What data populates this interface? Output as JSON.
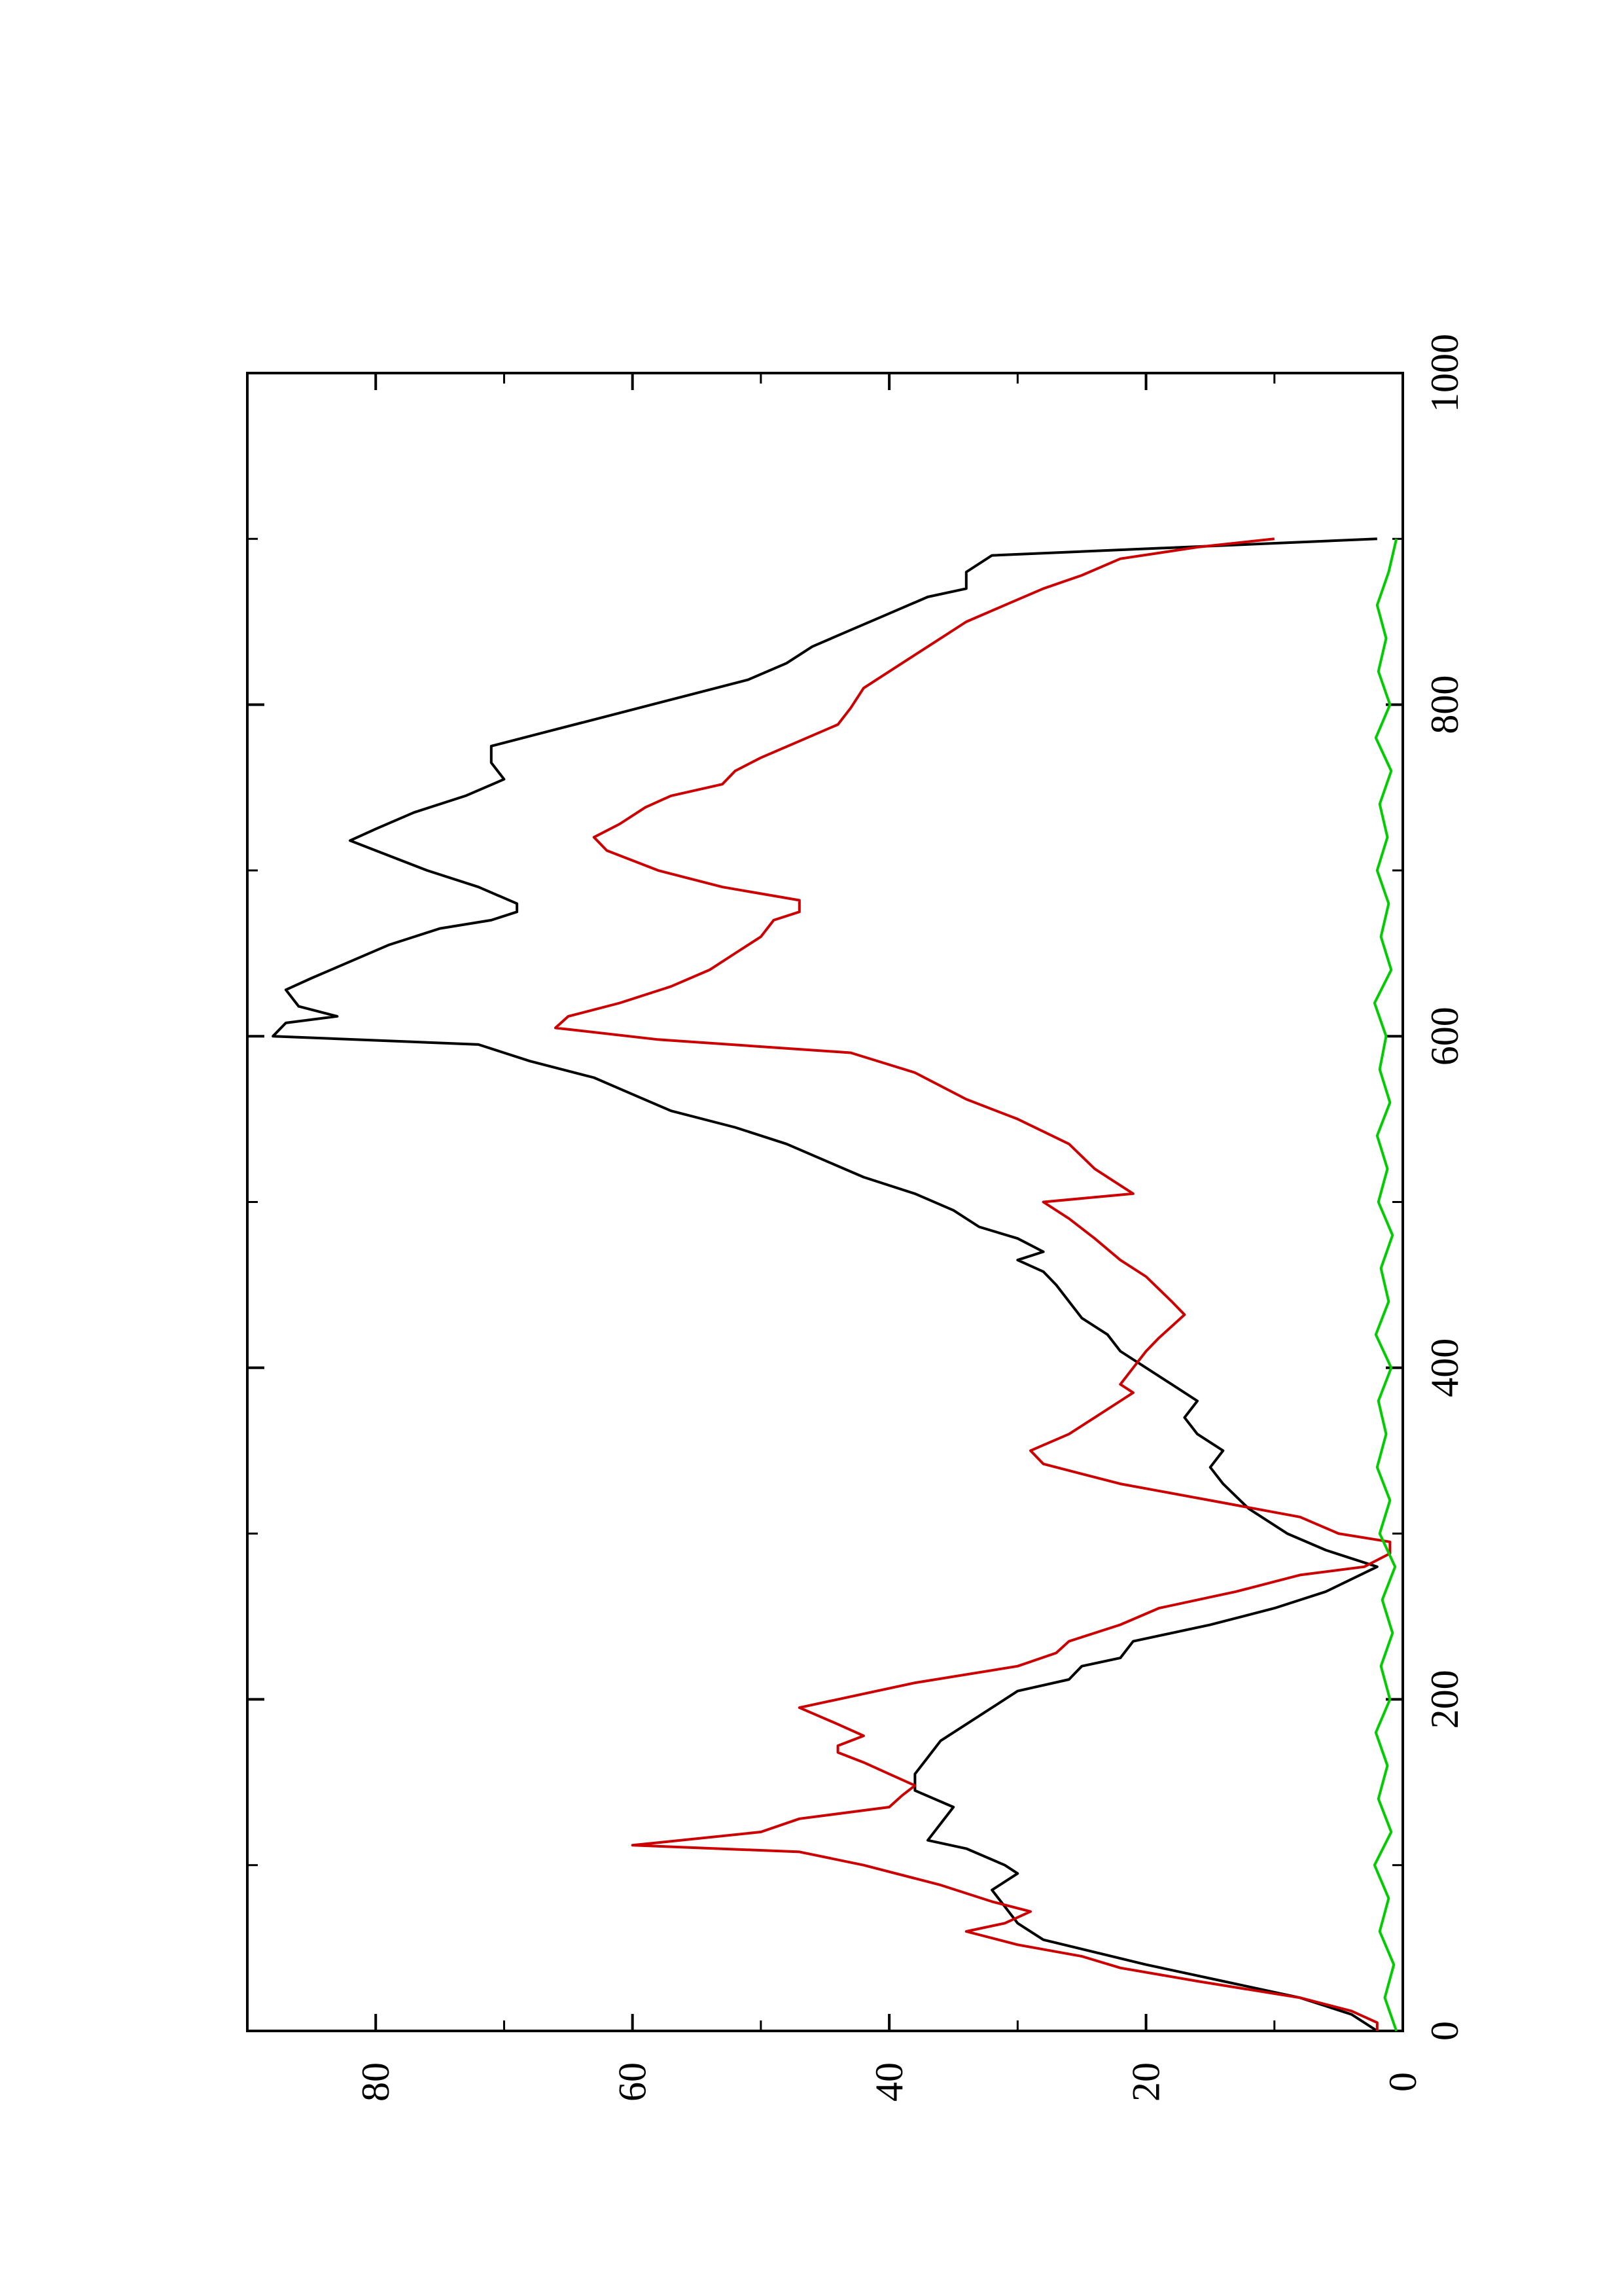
{
  "chart_data": {
    "type": "line",
    "orientation": "rotated-90-ccw",
    "xlim": [
      0,
      1000
    ],
    "ylim": [
      0,
      90
    ],
    "x_ticks": [
      0,
      200,
      400,
      600,
      800,
      1000
    ],
    "y_ticks": [
      0,
      20,
      40,
      60,
      80
    ],
    "title": "",
    "xlabel": "",
    "ylabel": "",
    "grid": false,
    "series": [
      {
        "color": "#000000",
        "points": [
          [
            0,
            2
          ],
          [
            10,
            4
          ],
          [
            20,
            8
          ],
          [
            30,
            14
          ],
          [
            40,
            20
          ],
          [
            55,
            28
          ],
          [
            65,
            30
          ],
          [
            75,
            31
          ],
          [
            85,
            32
          ],
          [
            95,
            30
          ],
          [
            100,
            31
          ],
          [
            110,
            34
          ],
          [
            115,
            37
          ],
          [
            125,
            36
          ],
          [
            135,
            35
          ],
          [
            145,
            38
          ],
          [
            155,
            38
          ],
          [
            165,
            37
          ],
          [
            175,
            36
          ],
          [
            185,
            34
          ],
          [
            195,
            32
          ],
          [
            205,
            30
          ],
          [
            212,
            26
          ],
          [
            220,
            25
          ],
          [
            225,
            22
          ],
          [
            235,
            21
          ],
          [
            245,
            15
          ],
          [
            255,
            10
          ],
          [
            265,
            6
          ],
          [
            280,
            2
          ],
          [
            290,
            6
          ],
          [
            300,
            9
          ],
          [
            315,
            12
          ],
          [
            330,
            14
          ],
          [
            340,
            15
          ],
          [
            350,
            14
          ],
          [
            360,
            16
          ],
          [
            370,
            17
          ],
          [
            380,
            16
          ],
          [
            390,
            18
          ],
          [
            400,
            20
          ],
          [
            410,
            22
          ],
          [
            420,
            23
          ],
          [
            430,
            25
          ],
          [
            440,
            26
          ],
          [
            450,
            27
          ],
          [
            458,
            28
          ],
          [
            465,
            30
          ],
          [
            470,
            28
          ],
          [
            478,
            30
          ],
          [
            485,
            33
          ],
          [
            495,
            35
          ],
          [
            505,
            38
          ],
          [
            515,
            42
          ],
          [
            525,
            45
          ],
          [
            535,
            48
          ],
          [
            545,
            52
          ],
          [
            555,
            57
          ],
          [
            565,
            60
          ],
          [
            575,
            63
          ],
          [
            585,
            68
          ],
          [
            595,
            72
          ],
          [
            600,
            88
          ],
          [
            608,
            87
          ],
          [
            612,
            83
          ],
          [
            618,
            86
          ],
          [
            628,
            87
          ],
          [
            635,
            85
          ],
          [
            645,
            82
          ],
          [
            655,
            79
          ],
          [
            665,
            75
          ],
          [
            670,
            71
          ],
          [
            675,
            69
          ],
          [
            680,
            69
          ],
          [
            690,
            72
          ],
          [
            700,
            76
          ],
          [
            712,
            80
          ],
          [
            718,
            82
          ],
          [
            725,
            80
          ],
          [
            735,
            77
          ],
          [
            745,
            73
          ],
          [
            755,
            70
          ],
          [
            765,
            71
          ],
          [
            775,
            71
          ],
          [
            785,
            66
          ],
          [
            795,
            61
          ],
          [
            805,
            56
          ],
          [
            815,
            51
          ],
          [
            825,
            48
          ],
          [
            835,
            46
          ],
          [
            845,
            43
          ],
          [
            855,
            40
          ],
          [
            865,
            37
          ],
          [
            870,
            34
          ],
          [
            880,
            34
          ],
          [
            890,
            32
          ],
          [
            900,
            2
          ]
        ]
      },
      {
        "color": "#cc0000",
        "points": [
          [
            0,
            2
          ],
          [
            5,
            2
          ],
          [
            12,
            4
          ],
          [
            20,
            8
          ],
          [
            25,
            12
          ],
          [
            30,
            16
          ],
          [
            38,
            22
          ],
          [
            45,
            25
          ],
          [
            52,
            30
          ],
          [
            60,
            34
          ],
          [
            65,
            31
          ],
          [
            72,
            29
          ],
          [
            78,
            32
          ],
          [
            88,
            36
          ],
          [
            100,
            42
          ],
          [
            108,
            47
          ],
          [
            112,
            60
          ],
          [
            120,
            50
          ],
          [
            128,
            47
          ],
          [
            135,
            40
          ],
          [
            142,
            39
          ],
          [
            148,
            38
          ],
          [
            155,
            40
          ],
          [
            162,
            42
          ],
          [
            168,
            44
          ],
          [
            172,
            44
          ],
          [
            178,
            42
          ],
          [
            185,
            44
          ],
          [
            195,
            47
          ],
          [
            200,
            44
          ],
          [
            210,
            38
          ],
          [
            220,
            30
          ],
          [
            228,
            27
          ],
          [
            235,
            26
          ],
          [
            245,
            22
          ],
          [
            255,
            19
          ],
          [
            265,
            13
          ],
          [
            275,
            8
          ],
          [
            280,
            3
          ],
          [
            288,
            1
          ],
          [
            295,
            1
          ],
          [
            300,
            5
          ],
          [
            310,
            8
          ],
          [
            320,
            15
          ],
          [
            330,
            22
          ],
          [
            342,
            28
          ],
          [
            350,
            29
          ],
          [
            360,
            26
          ],
          [
            370,
            24
          ],
          [
            380,
            22
          ],
          [
            385,
            21
          ],
          [
            390,
            22
          ],
          [
            400,
            21
          ],
          [
            410,
            20
          ],
          [
            418,
            19
          ],
          [
            425,
            18
          ],
          [
            432,
            17
          ],
          [
            440,
            18
          ],
          [
            455,
            20
          ],
          [
            465,
            22
          ],
          [
            478,
            24
          ],
          [
            490,
            26
          ],
          [
            500,
            28
          ],
          [
            505,
            21
          ],
          [
            510,
            22
          ],
          [
            520,
            24
          ],
          [
            535,
            26
          ],
          [
            550,
            30
          ],
          [
            562,
            34
          ],
          [
            578,
            38
          ],
          [
            590,
            43
          ],
          [
            598,
            58
          ],
          [
            605,
            66
          ],
          [
            612,
            65
          ],
          [
            620,
            61
          ],
          [
            630,
            57
          ],
          [
            640,
            54
          ],
          [
            650,
            52
          ],
          [
            660,
            50
          ],
          [
            670,
            49
          ],
          [
            675,
            47
          ],
          [
            682,
            47
          ],
          [
            690,
            53
          ],
          [
            700,
            58
          ],
          [
            712,
            62
          ],
          [
            720,
            63
          ],
          [
            728,
            61
          ],
          [
            738,
            59
          ],
          [
            745,
            57
          ],
          [
            752,
            53
          ],
          [
            760,
            52
          ],
          [
            768,
            50
          ],
          [
            778,
            47
          ],
          [
            788,
            44
          ],
          [
            798,
            43
          ],
          [
            810,
            42
          ],
          [
            820,
            40
          ],
          [
            830,
            38
          ],
          [
            840,
            36
          ],
          [
            850,
            34
          ],
          [
            860,
            31
          ],
          [
            870,
            28
          ],
          [
            878,
            25
          ],
          [
            888,
            22
          ],
          [
            895,
            16
          ],
          [
            900,
            10
          ]
        ]
      },
      {
        "color": "#00cc00",
        "points": [
          [
            0,
            0.5
          ],
          [
            20,
            1.4
          ],
          [
            40,
            0.7
          ],
          [
            60,
            1.8
          ],
          [
            80,
            1.1
          ],
          [
            100,
            2.2
          ],
          [
            120,
            0.9
          ],
          [
            140,
            1.9
          ],
          [
            160,
            1.2
          ],
          [
            180,
            2.1
          ],
          [
            200,
            1.0
          ],
          [
            220,
            1.7
          ],
          [
            240,
            0.8
          ],
          [
            260,
            1.6
          ],
          [
            280,
            0.6
          ],
          [
            300,
            1.8
          ],
          [
            320,
            1.0
          ],
          [
            340,
            2.0
          ],
          [
            360,
            1.3
          ],
          [
            380,
            1.9
          ],
          [
            400,
            0.9
          ],
          [
            420,
            2.1
          ],
          [
            440,
            1.1
          ],
          [
            460,
            1.7
          ],
          [
            480,
            0.8
          ],
          [
            500,
            1.9
          ],
          [
            520,
            1.2
          ],
          [
            540,
            2.0
          ],
          [
            560,
            1.0
          ],
          [
            580,
            1.8
          ],
          [
            600,
            1.3
          ],
          [
            620,
            2.2
          ],
          [
            640,
            0.9
          ],
          [
            660,
            1.7
          ],
          [
            680,
            1.1
          ],
          [
            700,
            2.0
          ],
          [
            720,
            1.2
          ],
          [
            740,
            1.8
          ],
          [
            760,
            0.9
          ],
          [
            780,
            2.1
          ],
          [
            800,
            1.0
          ],
          [
            820,
            1.9
          ],
          [
            840,
            1.3
          ],
          [
            860,
            2.0
          ],
          [
            880,
            1.1
          ],
          [
            900,
            0.5
          ]
        ]
      }
    ]
  }
}
